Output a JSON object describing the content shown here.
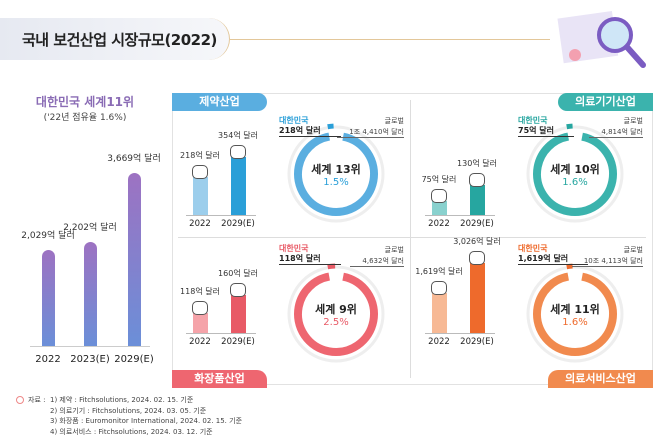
{
  "title": "국내 보건산업 시장규모(2022)",
  "left": {
    "headline": "대한민국 세계11위",
    "sub": "('22년 점유율 1.6%)",
    "bars": [
      {
        "year": "2022",
        "value_label": "2,029억 달러",
        "value": 2029
      },
      {
        "year": "2023(E)",
        "value_label": "2,202억 달러",
        "value": 2202
      },
      {
        "year": "2029(E)",
        "value_label": "3,669억 달러",
        "value": 3669
      }
    ]
  },
  "quadrants": [
    {
      "name": "제약산업",
      "color": "#5aaee0",
      "dark": "#2a9fd8",
      "korea_label": "대한민국",
      "korea_value": "218억 달러",
      "global_label": "글로벌",
      "global_value": "1조 4,410억 달러",
      "rank": "세계 13위",
      "share": "1.5%",
      "years": [
        "2022",
        "2029(E)"
      ],
      "values": [
        "218억 달러",
        "354억 달러"
      ],
      "amounts": [
        218,
        354
      ]
    },
    {
      "name": "의료기기산업",
      "color": "#3bb3ad",
      "dark": "#26a6a0",
      "korea_label": "대한민국",
      "korea_value": "75억 달러",
      "global_label": "글로벌",
      "global_value": "4,814억 달러",
      "rank": "세계 10위",
      "share": "1.6%",
      "years": [
        "2022",
        "2029(E)"
      ],
      "values": [
        "75억 달러",
        "130억 달러"
      ],
      "amounts": [
        75,
        130
      ]
    },
    {
      "name": "화장품산업",
      "color": "#ee6670",
      "dark": "#e85a66",
      "korea_label": "대한민국",
      "korea_value": "118억 달러",
      "global_label": "글로벌",
      "global_value": "4,632억 달러",
      "rank": "세계 9위",
      "share": "2.5%",
      "years": [
        "2022",
        "2029(E)"
      ],
      "values": [
        "118억 달러",
        "160억 달러"
      ],
      "amounts": [
        118,
        160
      ]
    },
    {
      "name": "의료서비스산업",
      "color": "#f18a4e",
      "dark": "#ee6a2c",
      "korea_label": "대한민국",
      "korea_value": "1,619억 달러",
      "global_label": "글로벌",
      "global_value": "10조 4,113억 달러",
      "rank": "세계 11위",
      "share": "1.6%",
      "years": [
        "2022",
        "2029(E)"
      ],
      "values": [
        "1,619억 달러",
        "3,026억 달러"
      ],
      "amounts": [
        1619,
        3026
      ]
    }
  ],
  "source": {
    "label": "자료 :",
    "items": [
      "1) 제약 : Fitchsolutions, 2024. 02. 15. 기준",
      "2) 의료기기 : Fitchsolutions, 2024. 03. 05. 기준",
      "3) 화장품 : Euromonitor International, 2024. 02. 15. 기준",
      "4) 의료서비스 : Fitchsolutions, 2024. 03. 12. 기준"
    ]
  }
}
